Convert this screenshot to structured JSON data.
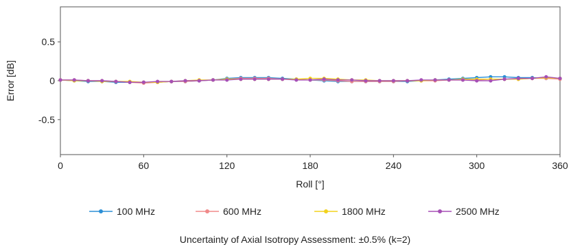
{
  "chart_data": {
    "type": "line",
    "xlabel": "Roll [°]",
    "ylabel": "Error [dB]",
    "xlim": [
      0,
      360
    ],
    "ylim": [
      -0.95,
      0.95
    ],
    "xticks": [
      0,
      60,
      120,
      180,
      240,
      300,
      360
    ],
    "yticks": [
      -0.5,
      0,
      0.5
    ],
    "ytick_labels": [
      "-0.5",
      "0",
      "0.5"
    ],
    "grid": false,
    "legend_position": "bottom",
    "x": [
      0,
      10,
      20,
      30,
      40,
      50,
      60,
      70,
      80,
      90,
      100,
      110,
      120,
      130,
      140,
      150,
      160,
      170,
      180,
      190,
      200,
      210,
      220,
      230,
      240,
      250,
      260,
      270,
      280,
      290,
      300,
      310,
      320,
      330,
      340,
      350,
      360
    ],
    "series": [
      {
        "name": "100 MHz",
        "color": "#2b8fd6",
        "values": [
          0.01,
          0.0,
          -0.01,
          -0.01,
          -0.02,
          -0.02,
          -0.02,
          -0.02,
          -0.01,
          -0.01,
          0.0,
          0.01,
          0.03,
          0.04,
          0.04,
          0.04,
          0.03,
          0.02,
          0.01,
          0.0,
          -0.01,
          -0.01,
          -0.01,
          -0.01,
          -0.01,
          -0.01,
          0.0,
          0.01,
          0.02,
          0.03,
          0.04,
          0.05,
          0.05,
          0.04,
          0.04,
          0.03,
          0.03
        ]
      },
      {
        "name": "600 MHz",
        "color": "#f08a8a",
        "values": [
          0.01,
          0.01,
          0.0,
          0.0,
          -0.01,
          -0.02,
          -0.03,
          -0.02,
          -0.01,
          -0.01,
          0.0,
          0.01,
          0.02,
          0.03,
          0.03,
          0.03,
          0.02,
          0.02,
          0.01,
          0.01,
          0.0,
          -0.01,
          -0.01,
          -0.01,
          -0.01,
          0.0,
          0.0,
          0.0,
          0.01,
          0.01,
          0.01,
          0.02,
          0.02,
          0.02,
          0.03,
          0.03,
          0.02
        ]
      },
      {
        "name": "1800 MHz",
        "color": "#f2d21c",
        "values": [
          0.01,
          0.0,
          0.0,
          -0.01,
          -0.01,
          -0.01,
          -0.02,
          -0.02,
          -0.01,
          0.0,
          0.01,
          0.01,
          0.02,
          0.02,
          0.02,
          0.02,
          0.02,
          0.02,
          0.03,
          0.03,
          0.02,
          0.01,
          0.01,
          0.0,
          0.0,
          0.0,
          0.0,
          0.01,
          0.01,
          0.02,
          0.02,
          0.02,
          0.02,
          0.02,
          0.03,
          0.04,
          0.03
        ]
      },
      {
        "name": "2500 MHz",
        "color": "#a64fb5",
        "values": [
          0.01,
          0.01,
          0.0,
          0.0,
          -0.01,
          -0.02,
          -0.02,
          -0.01,
          -0.01,
          0.0,
          0.0,
          0.01,
          0.01,
          0.02,
          0.02,
          0.02,
          0.02,
          0.01,
          0.01,
          0.02,
          0.01,
          0.01,
          0.0,
          0.0,
          0.0,
          0.0,
          0.01,
          0.01,
          0.01,
          0.01,
          0.0,
          0.0,
          0.02,
          0.03,
          0.03,
          0.05,
          0.03
        ]
      }
    ],
    "annotation": "Uncertainty of Axial Isotropy Assessment: ±0.5% (k=2)"
  }
}
